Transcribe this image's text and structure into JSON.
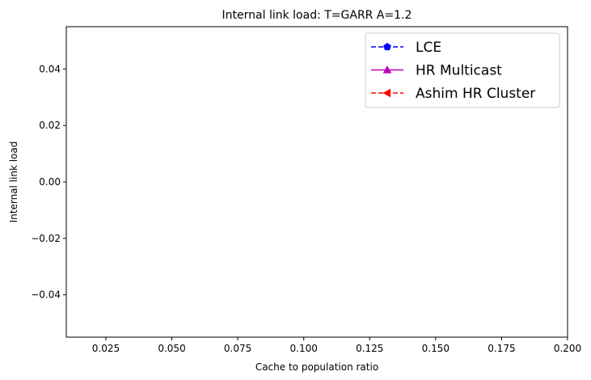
{
  "chart_data": {
    "type": "line",
    "title": "Internal link load: T=GARR A=1.2",
    "xlabel": "Cache to population ratio",
    "ylabel": "Internal link load",
    "xlim": [
      0.01,
      0.2
    ],
    "ylim": [
      -0.055,
      0.055
    ],
    "x_ticks": [
      0.025,
      0.05,
      0.075,
      0.1,
      0.125,
      0.15,
      0.175,
      0.2
    ],
    "x_tick_labels": [
      "0.025",
      "0.050",
      "0.075",
      "0.100",
      "0.125",
      "0.150",
      "0.175",
      "0.200"
    ],
    "y_ticks": [
      -0.04,
      -0.02,
      0.0,
      0.02,
      0.04
    ],
    "y_tick_labels": [
      "−0.04",
      "−0.02",
      "0.00",
      "0.02",
      "0.04"
    ],
    "grid": false,
    "legend_position": "top-right",
    "series": [
      {
        "name": "LCE",
        "color": "#0000ff",
        "linestyle": "dashed",
        "marker": "pentagon",
        "x": [],
        "y": []
      },
      {
        "name": "HR Multicast",
        "color": "#bf00bf",
        "linestyle": "solid",
        "marker": "triangle-up",
        "x": [],
        "y": []
      },
      {
        "name": "Ashim HR Cluster",
        "color": "#ff0000",
        "linestyle": "dashed",
        "marker": "triangle-left",
        "x": [],
        "y": []
      }
    ]
  }
}
